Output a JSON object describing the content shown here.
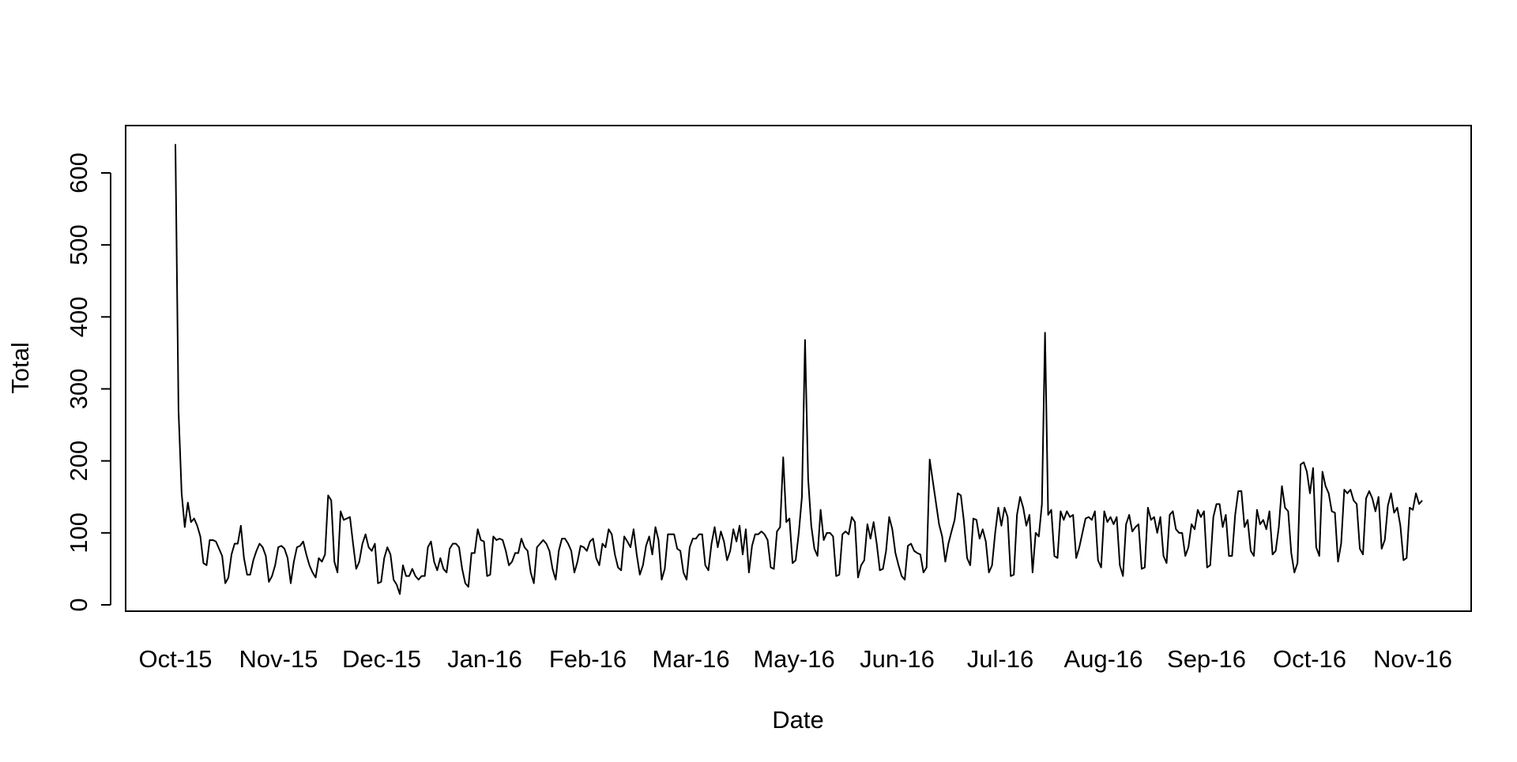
{
  "chart_data": {
    "type": "line",
    "title": "",
    "xlabel": "Date",
    "ylabel": "Total",
    "x_tick_labels": [
      "Oct-15",
      "Nov-15",
      "Dec-15",
      "Jan-16",
      "Feb-16",
      "Mar-16",
      "May-16",
      "Jun-16",
      "Jul-16",
      "Aug-16",
      "Sep-16",
      "Oct-16",
      "Nov-16"
    ],
    "y_ticks": [
      0,
      100,
      200,
      300,
      400,
      500,
      600
    ],
    "ylim": [
      -10,
      650
    ],
    "grid": false,
    "legend": "none",
    "line_color": "#000000",
    "series": [
      {
        "values": [
          640,
          270,
          155,
          108,
          142,
          115,
          120,
          110,
          95,
          58,
          55,
          90,
          90,
          88,
          78,
          68,
          30,
          38,
          70,
          85,
          85,
          110,
          65,
          42,
          42,
          62,
          75,
          85,
          80,
          68,
          32,
          40,
          55,
          80,
          82,
          78,
          65,
          30,
          60,
          80,
          82,
          88,
          70,
          55,
          45,
          38,
          65,
          60,
          70,
          152,
          145,
          60,
          45,
          130,
          118,
          120,
          122,
          85,
          50,
          60,
          85,
          98,
          80,
          75,
          85,
          30,
          32,
          65,
          80,
          70,
          35,
          28,
          15,
          55,
          40,
          40,
          50,
          40,
          35,
          40,
          40,
          80,
          88,
          60,
          48,
          65,
          50,
          45,
          78,
          85,
          85,
          80,
          50,
          30,
          25,
          72,
          72,
          105,
          90,
          88,
          40,
          42,
          95,
          90,
          92,
          90,
          75,
          55,
          60,
          72,
          72,
          92,
          80,
          75,
          45,
          30,
          80,
          85,
          90,
          85,
          75,
          50,
          35,
          75,
          92,
          92,
          85,
          75,
          45,
          60,
          82,
          80,
          75,
          88,
          92,
          65,
          55,
          85,
          80,
          105,
          98,
          70,
          52,
          48,
          95,
          88,
          80,
          105,
          70,
          42,
          55,
          82,
          95,
          70,
          108,
          90,
          35,
          50,
          98,
          98,
          98,
          78,
          75,
          45,
          35,
          80,
          92,
          92,
          98,
          98,
          55,
          48,
          85,
          108,
          80,
          102,
          88,
          62,
          75,
          105,
          88,
          110,
          70,
          105,
          45,
          82,
          98,
          98,
          102,
          98,
          90,
          52,
          50,
          102,
          108,
          205,
          115,
          120,
          58,
          62,
          100,
          150,
          368,
          175,
          110,
          78,
          68,
          132,
          90,
          100,
          100,
          95,
          40,
          42,
          98,
          102,
          98,
          122,
          115,
          38,
          55,
          62,
          112,
          92,
          115,
          85,
          48,
          50,
          75,
          122,
          105,
          72,
          55,
          40,
          35,
          82,
          85,
          75,
          72,
          70,
          45,
          52,
          202,
          172,
          142,
          112,
          95,
          60,
          85,
          102,
          118,
          155,
          152,
          115,
          65,
          55,
          120,
          118,
          92,
          105,
          88,
          45,
          55,
          100,
          135,
          110,
          135,
          122,
          40,
          42,
          125,
          150,
          135,
          110,
          125,
          45,
          100,
          95,
          140,
          378,
          125,
          132,
          68,
          65,
          130,
          118,
          130,
          122,
          125,
          65,
          80,
          100,
          120,
          122,
          118,
          130,
          62,
          52,
          130,
          115,
          122,
          112,
          122,
          55,
          40,
          112,
          125,
          102,
          108,
          112,
          50,
          52,
          135,
          118,
          122,
          100,
          122,
          68,
          58,
          125,
          130,
          105,
          100,
          100,
          68,
          80,
          112,
          105,
          132,
          122,
          130,
          52,
          55,
          122,
          140,
          140,
          108,
          125,
          68,
          68,
          125,
          158,
          158,
          108,
          118,
          75,
          68,
          132,
          112,
          118,
          105,
          130,
          70,
          75,
          108,
          165,
          135,
          130,
          72,
          45,
          58,
          195,
          198,
          185,
          155,
          190,
          80,
          68,
          185,
          165,
          155,
          130,
          128,
          60,
          85,
          160,
          155,
          160,
          145,
          140,
          78,
          70,
          148,
          158,
          148,
          130,
          150,
          78,
          90,
          138,
          155,
          128,
          135,
          110,
          62,
          65,
          135,
          132,
          155,
          140,
          145
        ]
      }
    ]
  }
}
